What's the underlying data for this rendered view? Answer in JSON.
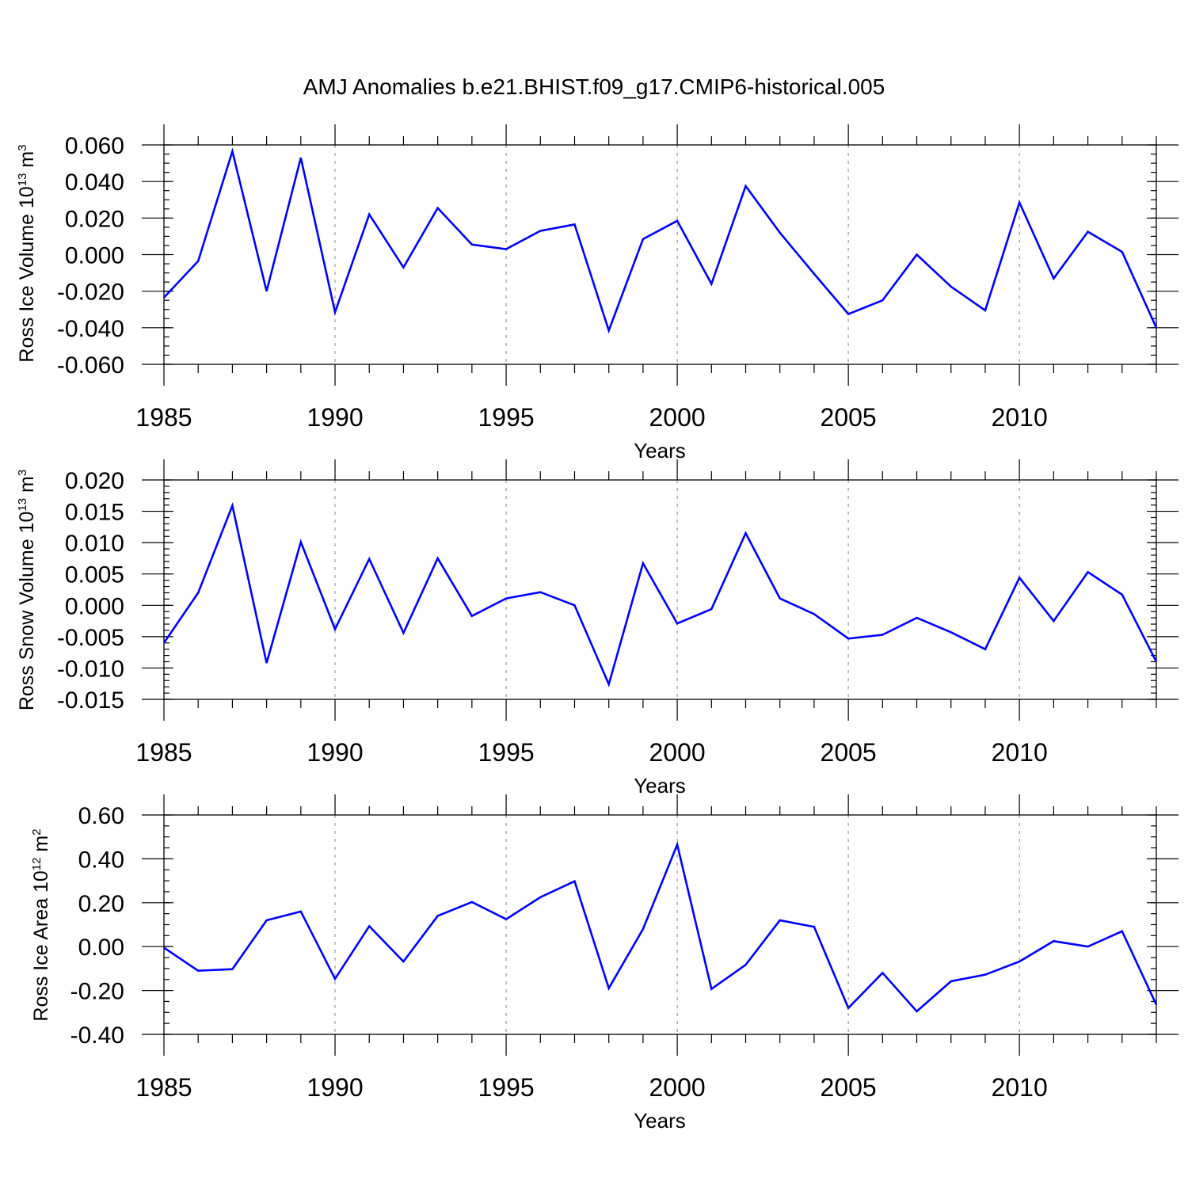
{
  "title": "AMJ Anomalies b.e21.BHIST.f09_g17.CMIP6-historical.005",
  "chart_data": [
    {
      "type": "line",
      "xlabel": "Years",
      "ylabel": {
        "prefix": "Ross Ice Volume 10",
        "exponent": "13",
        "middle": " m",
        "unit_exponent": "3"
      },
      "xlim": [
        1985,
        2014
      ],
      "ylim": [
        -0.06,
        0.06
      ],
      "x_ticks": [
        1985,
        1990,
        1995,
        2000,
        2005,
        2010
      ],
      "y_ticks": [
        "0.060",
        "0.040",
        "0.020",
        "0.000",
        "-0.020",
        "-0.040",
        "-0.060"
      ],
      "y_tick_values": [
        0.06,
        0.04,
        0.02,
        0.0,
        -0.02,
        -0.04,
        -0.06
      ],
      "y_minor_step": 0.005,
      "grid": "dashed vertical lines at labeled years",
      "series": [
        {
          "name": "Ross Ice Volume",
          "color": "#0000ff",
          "x": [
            1985,
            1986,
            1987,
            1988,
            1989,
            1990,
            1991,
            1992,
            1993,
            1994,
            1995,
            1996,
            1997,
            1998,
            1999,
            2000,
            2001,
            2002,
            2003,
            2004,
            2005,
            2006,
            2007,
            2008,
            2009,
            2010,
            2011,
            2012,
            2013,
            2014
          ],
          "values": [
            -0.0235,
            -0.0035,
            0.0565,
            -0.02,
            0.053,
            -0.0315,
            0.022,
            -0.007,
            0.0255,
            0.0055,
            0.003,
            0.013,
            0.0165,
            -0.0415,
            0.0085,
            0.0185,
            -0.016,
            0.0375,
            0.012,
            -0.0105,
            -0.0325,
            -0.025,
            0.0,
            -0.0175,
            -0.0305,
            0.0285,
            -0.013,
            0.0125,
            0.0015,
            -0.04
          ]
        }
      ]
    },
    {
      "type": "line",
      "xlabel": "Years",
      "ylabel": {
        "prefix": "Ross Snow Volume 10",
        "exponent": "13",
        "middle": " m",
        "unit_exponent": "3"
      },
      "xlim": [
        1985,
        2014
      ],
      "ylim": [
        -0.015,
        0.02
      ],
      "x_ticks": [
        1985,
        1990,
        1995,
        2000,
        2005,
        2010
      ],
      "y_ticks": [
        "0.020",
        "0.015",
        "0.010",
        "0.005",
        "0.000",
        "-0.005",
        "-0.010",
        "-0.015"
      ],
      "y_tick_values": [
        0.02,
        0.015,
        0.01,
        0.005,
        0.0,
        -0.005,
        -0.01,
        -0.015
      ],
      "y_minor_step": 0.001,
      "grid": "dashed vertical lines at labeled years",
      "series": [
        {
          "name": "Ross Snow Volume",
          "color": "#0000ff",
          "x": [
            1985,
            1986,
            1987,
            1988,
            1989,
            1990,
            1991,
            1992,
            1993,
            1994,
            1995,
            1996,
            1997,
            1998,
            1999,
            2000,
            2001,
            2002,
            2003,
            2004,
            2005,
            2006,
            2007,
            2008,
            2009,
            2010,
            2011,
            2012,
            2013,
            2014
          ],
          "values": [
            -0.006,
            0.002,
            0.0159,
            -0.0092,
            0.0101,
            -0.0038,
            0.0074,
            -0.0044,
            0.0075,
            -0.0017,
            0.0011,
            0.0021,
            0.0,
            -0.0126,
            0.0067,
            -0.0029,
            -0.0006,
            0.0115,
            0.0011,
            -0.0014,
            -0.0053,
            -0.0047,
            -0.002,
            -0.0043,
            -0.007,
            0.0044,
            -0.0025,
            0.0053,
            0.0017,
            -0.009
          ]
        }
      ]
    },
    {
      "type": "line",
      "xlabel": "Years",
      "ylabel": {
        "prefix": "Ross Ice Area 10",
        "exponent": "12",
        "middle": " m",
        "unit_exponent": "2"
      },
      "xlim": [
        1985,
        2014
      ],
      "ylim": [
        -0.4,
        0.6
      ],
      "x_ticks": [
        1985,
        1990,
        1995,
        2000,
        2005,
        2010
      ],
      "y_ticks": [
        "0.60",
        "0.40",
        "0.20",
        "0.00",
        "-0.20",
        "-0.40"
      ],
      "y_tick_values": [
        0.6,
        0.4,
        0.2,
        0.0,
        -0.2,
        -0.4
      ],
      "y_minor_step": 0.05,
      "grid": "dashed vertical lines at labeled years",
      "series": [
        {
          "name": "Ross Ice Area",
          "color": "#0000ff",
          "x": [
            1985,
            1986,
            1987,
            1988,
            1989,
            1990,
            1991,
            1992,
            1993,
            1994,
            1995,
            1996,
            1997,
            1998,
            1999,
            2000,
            2001,
            2002,
            2003,
            2004,
            2005,
            2006,
            2007,
            2008,
            2009,
            2010,
            2011,
            2012,
            2013,
            2014
          ],
          "values": [
            -0.005,
            -0.11,
            -0.103,
            0.12,
            0.16,
            -0.147,
            0.093,
            -0.068,
            0.14,
            0.203,
            0.125,
            0.225,
            0.298,
            -0.19,
            0.08,
            0.465,
            -0.193,
            -0.083,
            0.12,
            0.09,
            -0.28,
            -0.12,
            -0.295,
            -0.158,
            -0.128,
            -0.068,
            0.025,
            0.0,
            0.07,
            -0.265
          ]
        }
      ]
    }
  ]
}
